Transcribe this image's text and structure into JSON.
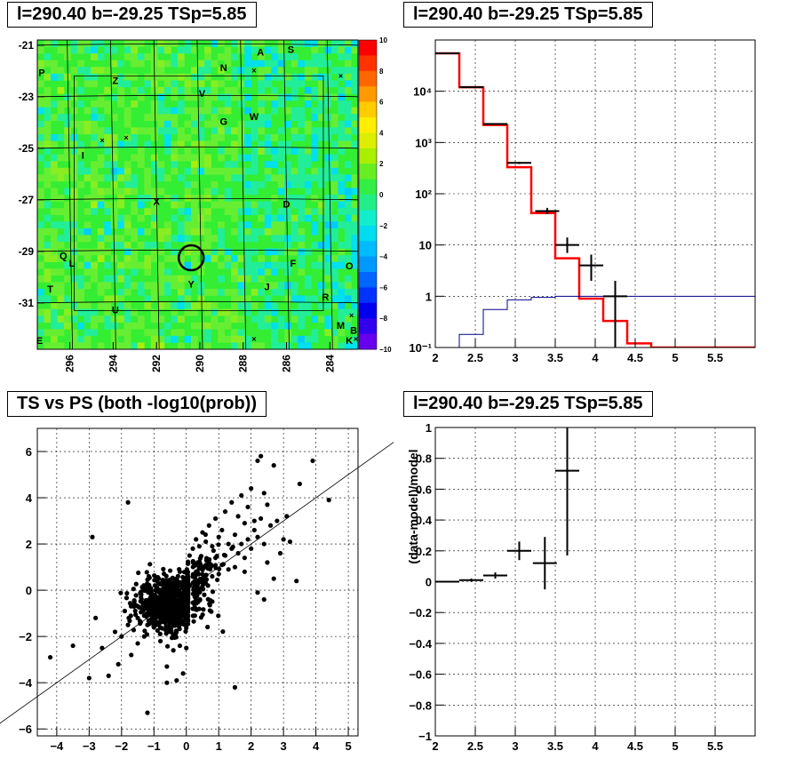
{
  "titles": {
    "map": "l=290.40 b=-29.25 TSp=5.85",
    "spectrum": "l=290.40 b=-29.25 TSp=5.85",
    "scatter": "TS vs PS (both -log10(prob))",
    "residual": "l=290.40 b=-29.25 TSp=5.85"
  },
  "chart_data": [
    {
      "type": "heatmap",
      "title": "l=290.40 b=-29.25 TSp=5.85",
      "x_ticks": [
        "296",
        "294",
        "292",
        "290",
        "288",
        "286",
        "284"
      ],
      "y_ticks": [
        "-21",
        "-23",
        "-25",
        "-27",
        "-29",
        "-31"
      ],
      "xlim": [
        297.5,
        282.7
      ],
      "ylim": [
        -32.8,
        -20.8
      ],
      "colorbar": {
        "range": [
          -10,
          10
        ],
        "ticks": [
          "10",
          "8",
          "6",
          "4",
          "2",
          "0",
          "−2",
          "−4",
          "−6",
          "−8",
          "−10"
        ]
      },
      "field_value_typical": 0,
      "circle_center": [
        290.4,
        -29.25
      ],
      "source_letters": [
        {
          "text": "A",
          "l": 287.2,
          "b": -21.4
        },
        {
          "text": "S",
          "l": 285.8,
          "b": -21.3
        },
        {
          "text": "N",
          "l": 288.9,
          "b": -22.0
        },
        {
          "text": "P",
          "l": 297.3,
          "b": -22.2
        },
        {
          "text": "Z",
          "l": 293.9,
          "b": -22.5
        },
        {
          "text": "V",
          "l": 289.9,
          "b": -23.0
        },
        {
          "text": "G",
          "l": 288.9,
          "b": -24.1
        },
        {
          "text": "W",
          "l": 287.5,
          "b": -23.9
        },
        {
          "text": "I",
          "l": 295.4,
          "b": -25.4
        },
        {
          "text": "X",
          "l": 292.0,
          "b": -27.2
        },
        {
          "text": "D",
          "l": 286.0,
          "b": -27.3
        },
        {
          "text": "Q",
          "l": 296.3,
          "b": -29.3
        },
        {
          "text": "L",
          "l": 295.9,
          "b": -29.6
        },
        {
          "text": "F",
          "l": 285.7,
          "b": -29.6
        },
        {
          "text": "O",
          "l": 283.1,
          "b": -29.7
        },
        {
          "text": "T",
          "l": 296.9,
          "b": -30.6
        },
        {
          "text": "Y",
          "l": 290.4,
          "b": -30.4
        },
        {
          "text": "J",
          "l": 286.9,
          "b": -30.5
        },
        {
          "text": "R",
          "l": 284.2,
          "b": -30.9
        },
        {
          "text": "U",
          "l": 293.9,
          "b": -31.4
        },
        {
          "text": "M",
          "l": 283.5,
          "b": -32.0
        },
        {
          "text": "B",
          "l": 282.9,
          "b": -32.2
        },
        {
          "text": "E",
          "l": 297.4,
          "b": -32.6
        },
        {
          "text": "K",
          "l": 283.1,
          "b": -32.6
        }
      ],
      "cross_markers": [
        {
          "l": 287.5,
          "b": -22.1
        },
        {
          "l": 283.5,
          "b": -22.3
        },
        {
          "l": 294.5,
          "b": -24.8
        },
        {
          "l": 293.4,
          "b": -24.7
        },
        {
          "l": 283.0,
          "b": -31.6
        },
        {
          "l": 287.5,
          "b": -32.5
        },
        {
          "l": 282.8,
          "b": -32.5
        }
      ]
    },
    {
      "type": "line",
      "title": "l=290.40 b=-29.25 TSp=5.85",
      "xlim": [
        2,
        6.0
      ],
      "ylim": [
        0.1,
        100000
      ],
      "yscale": "log",
      "x_ticks": [
        "2",
        "2.5",
        "3",
        "3.5",
        "4",
        "4.5",
        "5",
        "5.5"
      ],
      "y_ticks": [
        "10⁻¹",
        "1",
        "10",
        "10²",
        "10³",
        "10⁴"
      ],
      "grid": true,
      "series": [
        {
          "style": "step",
          "color": "#ff0000",
          "bin_edges": [
            2.0,
            2.3,
            2.6,
            2.9,
            3.2,
            3.5,
            3.8,
            4.1,
            4.4,
            4.7,
            6.0
          ],
          "values": [
            55000,
            12000,
            2200,
            330,
            42,
            5.5,
            0.9,
            0.33,
            0.12,
            0.1
          ]
        },
        {
          "style": "step",
          "color": "#00008b",
          "bin_edges": [
            2.0,
            2.3,
            2.6,
            2.9,
            3.2,
            3.5,
            3.8,
            4.1,
            4.4,
            4.7,
            6.0
          ],
          "values": [
            0.1,
            0.18,
            0.55,
            0.85,
            0.95,
            1.0,
            1.0,
            1.0,
            1.0,
            1.0
          ]
        },
        {
          "style": "errorbars",
          "color": "#000000",
          "points": [
            {
              "x": 2.15,
              "y": 55000,
              "xerr": 0.15,
              "ylo": 55000,
              "yhi": 55000
            },
            {
              "x": 2.45,
              "y": 12000,
              "xerr": 0.15,
              "ylo": 12000,
              "yhi": 12000
            },
            {
              "x": 2.75,
              "y": 2300,
              "xerr": 0.15,
              "ylo": 2250,
              "yhi": 2350
            },
            {
              "x": 3.05,
              "y": 400,
              "xerr": 0.15,
              "ylo": 380,
              "yhi": 420
            },
            {
              "x": 3.4,
              "y": 46,
              "xerr": 0.15,
              "ylo": 40,
              "yhi": 53
            },
            {
              "x": 3.65,
              "y": 10,
              "xerr": 0.15,
              "ylo": 7,
              "yhi": 14
            },
            {
              "x": 3.95,
              "y": 4,
              "xerr": 0.15,
              "ylo": 2,
              "yhi": 6.5
            },
            {
              "x": 4.25,
              "y": 1,
              "xerr": 0.15,
              "ylo": 0.1,
              "yhi": 2
            }
          ]
        }
      ]
    },
    {
      "type": "scatter",
      "title": "TS vs PS (both -log10(prob))",
      "xlim": [
        -4.6,
        5.3
      ],
      "ylim": [
        -6.3,
        7.0
      ],
      "x_ticks": [
        "−4",
        "−3",
        "−2",
        "−1",
        "0",
        "1",
        "2",
        "3",
        "4",
        "5"
      ],
      "y_ticks": [
        "−6",
        "−4",
        "−2",
        "0",
        "2",
        "4",
        "6"
      ],
      "grid": true,
      "reference_line": {
        "slope": 1,
        "intercept": 0
      },
      "points_x": [
        -4.2,
        -3.5,
        -3.0,
        -2.8,
        -2.6,
        -2.4,
        -2.2,
        -2.1,
        -2.0,
        -1.9,
        -1.8,
        -1.7,
        -1.6,
        -1.5,
        -1.5,
        -1.4,
        -1.3,
        -1.3,
        -1.2,
        -1.2,
        -1.1,
        -1.0,
        -1.0,
        -0.9,
        -0.9,
        -0.8,
        -0.8,
        -0.7,
        -0.7,
        -0.6,
        -0.6,
        -0.5,
        -0.5,
        -0.4,
        -0.4,
        -0.3,
        -0.3,
        -0.2,
        -0.2,
        -0.1,
        -0.1,
        0.0,
        0.0,
        0.1,
        0.1,
        0.2,
        0.2,
        0.3,
        0.3,
        0.4,
        0.4,
        0.5,
        0.5,
        0.6,
        0.6,
        0.7,
        0.7,
        0.8,
        0.8,
        0.9,
        0.9,
        1.0,
        1.0,
        1.1,
        1.1,
        1.2,
        1.2,
        1.3,
        1.3,
        1.4,
        1.4,
        1.5,
        1.5,
        1.6,
        1.6,
        1.7,
        1.7,
        1.8,
        1.8,
        1.9,
        1.9,
        2.0,
        2.0,
        2.1,
        2.1,
        2.2,
        2.2,
        2.3,
        2.3,
        2.4,
        2.4,
        2.5,
        2.6,
        2.7,
        2.8,
        2.9,
        3.0,
        3.1,
        3.2,
        3.4,
        3.9,
        4.4,
        -1.8,
        -1.2,
        -0.6,
        -0.3,
        1.5,
        2.2,
        2.5,
        1.8,
        2.7,
        -2.9,
        -0.1,
        0.2,
        2.4,
        3.5
      ],
      "points_y": [
        -2.9,
        -2.4,
        -3.8,
        -1.2,
        -2.5,
        -3.7,
        -1.8,
        -3.2,
        -2.0,
        -0.9,
        -1.5,
        -2.8,
        -0.6,
        -1.2,
        -2.3,
        -0.3,
        -1.1,
        -2.0,
        0.2,
        -1.5,
        -0.8,
        -0.3,
        -1.6,
        0.4,
        -1.0,
        -0.4,
        -2.2,
        0.1,
        -1.3,
        -0.5,
        -3.3,
        0.3,
        -1.8,
        -0.2,
        -2.6,
        0.5,
        -1.0,
        0.8,
        -2.4,
        0.2,
        -3.6,
        0.5,
        -2.5,
        1.5,
        0.2,
        1.8,
        0.6,
        2.2,
        0.8,
        1.9,
        0.4,
        2.5,
        1.0,
        2.1,
        0.3,
        2.8,
        1.2,
        1.9,
        0.6,
        3.1,
        1.4,
        2.3,
        0.7,
        2.6,
        1.1,
        3.4,
        1.5,
        2.0,
        0.9,
        3.8,
        1.8,
        2.4,
        1.0,
        3.2,
        1.6,
        4.1,
        2.0,
        2.9,
        1.4,
        3.6,
        2.2,
        4.4,
        1.8,
        3.0,
        2.6,
        5.6,
        2.3,
        5.8,
        3.1,
        4.2,
        2.0,
        3.7,
        2.8,
        5.4,
        3.0,
        1.6,
        2.2,
        3.2,
        2.1,
        0.4,
        5.6,
        3.9,
        3.8,
        -5.3,
        -4.0,
        -3.9,
        -4.2,
        -0.1,
        1.2,
        0.8,
        0.5,
        2.3,
        0.3,
        -0.8,
        -0.4,
        4.6,
        4.4
      ],
      "dense_core": {
        "x_center": -0.4,
        "y_center": -0.6,
        "x_spread": 0.9,
        "y_spread": 1.0,
        "count": 900
      }
    },
    {
      "type": "scatter",
      "title": "l=290.40 b=-29.25 TSp=5.85",
      "xlim": [
        2,
        6.0
      ],
      "ylim": [
        -1,
        1
      ],
      "x_ticks": [
        "2",
        "2.5",
        "3",
        "3.5",
        "4",
        "4.5",
        "5",
        "5.5"
      ],
      "y_ticks": [
        "−1",
        "−0.8",
        "−0.6",
        "−0.4",
        "−0.2",
        "0",
        "0.2",
        "0.4",
        "0.6",
        "0.8",
        "1"
      ],
      "ylabel": "(data-model)/model",
      "grid": true,
      "points": [
        {
          "x": 2.15,
          "y": 0.0,
          "xerr": 0.15,
          "yerr": 0.005
        },
        {
          "x": 2.45,
          "y": 0.01,
          "xerr": 0.15,
          "yerr": 0.01
        },
        {
          "x": 2.75,
          "y": 0.04,
          "xerr": 0.15,
          "yerr": 0.02
        },
        {
          "x": 3.05,
          "y": 0.2,
          "xerr": 0.15,
          "yerr": 0.06
        },
        {
          "x": 3.37,
          "y": 0.12,
          "xerr": 0.15,
          "yerr": 0.17
        },
        {
          "x": 3.65,
          "y": 0.72,
          "xerr": 0.15,
          "yerr": 0.55
        }
      ]
    }
  ]
}
